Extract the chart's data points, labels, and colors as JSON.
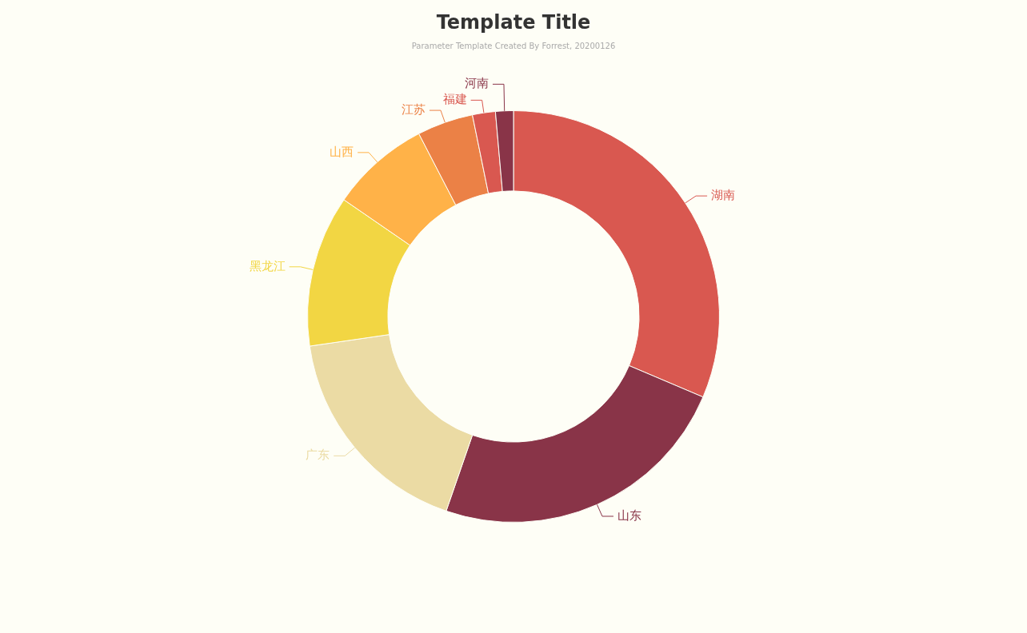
{
  "chart_data": {
    "type": "donut",
    "title": "Template Title",
    "subtitle": "Parameter Template Created By Forrest, 20200126",
    "categories": [
      "湖南",
      "山东",
      "广东",
      "黑龙江",
      "山西",
      "江苏",
      "福建",
      "河南"
    ],
    "values": [
      31.4,
      23.9,
      17.4,
      11.9,
      7.8,
      4.4,
      1.8,
      1.4
    ],
    "colors": [
      "#d95850",
      "#893448",
      "#ebdba4",
      "#f2d643",
      "#ffb248",
      "#eb8146",
      "#d95850",
      "#893448"
    ]
  }
}
